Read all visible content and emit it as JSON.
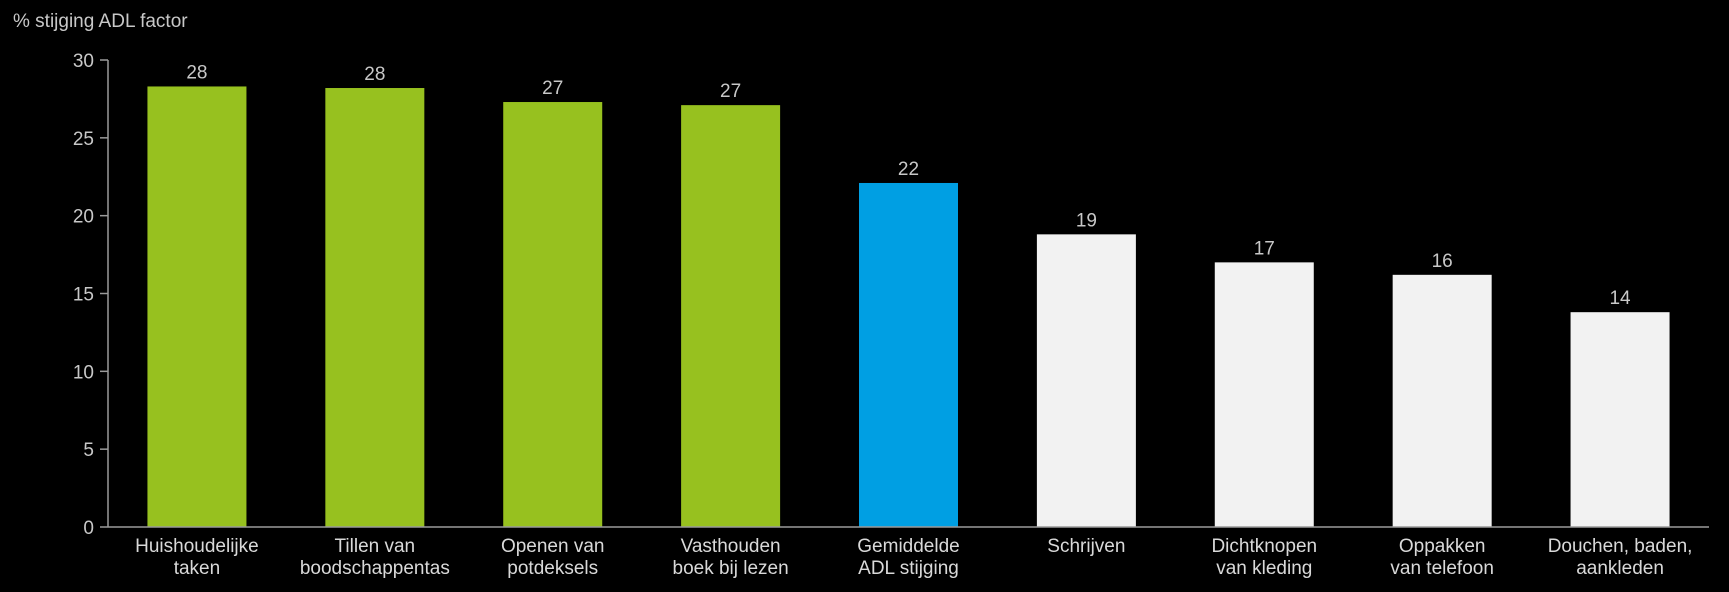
{
  "chart_data": {
    "type": "bar",
    "title": "",
    "ylabel": "% stijging ADL factor",
    "xlabel": "",
    "ylim": [
      0,
      30
    ],
    "yticks": [
      0,
      5,
      10,
      15,
      20,
      25,
      30
    ],
    "grid": false,
    "legend": "none",
    "categories": [
      [
        "Huishoudelijke",
        "taken"
      ],
      [
        "Tillen van",
        "boodschappentas"
      ],
      [
        "Openen van",
        "potdeksels"
      ],
      [
        "Vasthouden",
        "boek bij lezen"
      ],
      [
        "Gemiddelde",
        "ADL stijging"
      ],
      [
        "Schrijven"
      ],
      [
        "Dichtknopen",
        "van kleding"
      ],
      [
        "Oppakken",
        "van telefoon"
      ],
      [
        "Douchen, baden,",
        "aankleden"
      ]
    ],
    "values": [
      28.3,
      28.2,
      27.3,
      27.1,
      22.1,
      18.8,
      17.0,
      16.2,
      13.8
    ],
    "value_labels": [
      "28",
      "28",
      "27",
      "27",
      "22",
      "19",
      "17",
      "16",
      "14"
    ],
    "colors": [
      "#97c11f",
      "#97c11f",
      "#97c11f",
      "#97c11f",
      "#009fe3",
      "#f2f2f2",
      "#f2f2f2",
      "#f2f2f2",
      "#f2f2f2"
    ]
  }
}
